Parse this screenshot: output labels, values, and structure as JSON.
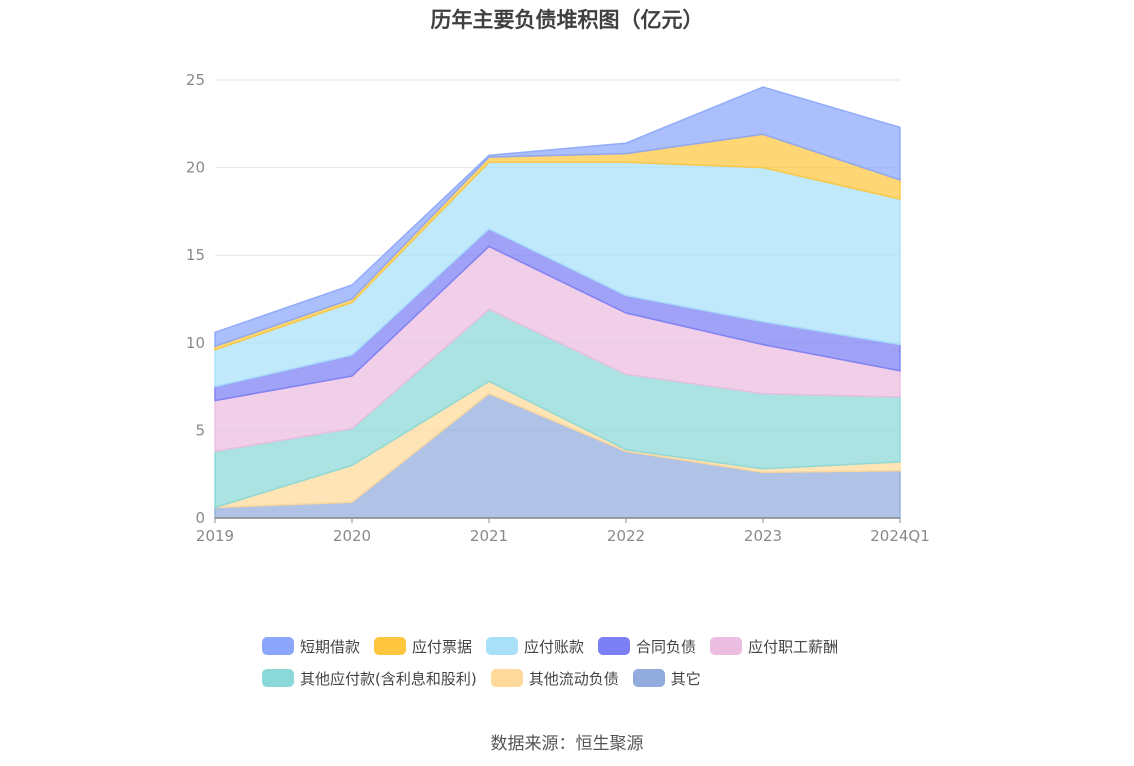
{
  "chart_data": {
    "type": "area",
    "stacked": true,
    "title": "历年主要负债堆积图（亿元）",
    "categories": [
      "2019",
      "2020",
      "2021",
      "2022",
      "2023",
      "2024Q1"
    ],
    "ylim": [
      0,
      25
    ],
    "yticks": [
      "0",
      "5",
      "10",
      "15",
      "20",
      "25"
    ],
    "grid": true,
    "legend_position": "bottom",
    "series": [
      {
        "name": "其它",
        "color": "#91acdc",
        "values": [
          0.6,
          0.9,
          7.1,
          3.8,
          2.6,
          2.7
        ]
      },
      {
        "name": "其他流动负债",
        "color": "#ffd99a",
        "values": [
          0.0,
          2.1,
          0.7,
          0.1,
          0.2,
          0.5
        ]
      },
      {
        "name": "其他应付款(含利息和股利)",
        "color": "#8ad8d8",
        "values": [
          3.2,
          2.1,
          4.1,
          4.3,
          4.3,
          3.7
        ]
      },
      {
        "name": "应付职工薪酬",
        "color": "#ebbde0",
        "values": [
          2.9,
          3.0,
          3.6,
          3.5,
          2.8,
          1.5
        ]
      },
      {
        "name": "合同负债",
        "color": "#7b7ef5",
        "values": [
          0.8,
          1.2,
          1.0,
          1.0,
          1.3,
          1.5
        ]
      },
      {
        "name": "应付账款",
        "color": "#a8e0fa",
        "values": [
          2.1,
          3.0,
          3.8,
          7.6,
          8.8,
          8.3
        ]
      },
      {
        "name": "应付票据",
        "color": "#fdc63e",
        "values": [
          0.2,
          0.2,
          0.3,
          0.5,
          1.9,
          1.1
        ]
      },
      {
        "name": "短期借款",
        "color": "#8ba6fb",
        "values": [
          0.8,
          0.8,
          0.1,
          0.6,
          2.7,
          3.0
        ]
      }
    ],
    "source": "数据来源：恒生聚源"
  },
  "legend": {
    "row1": [
      {
        "label": "短期借款",
        "color": "#8ba6fb"
      },
      {
        "label": "应付票据",
        "color": "#fdc63e"
      },
      {
        "label": "应付账款",
        "color": "#a8e0fa"
      },
      {
        "label": "合同负债",
        "color": "#7b7ef5"
      },
      {
        "label": "应付职工薪酬",
        "color": "#ebbde0"
      }
    ],
    "row2": [
      {
        "label": "其他应付款(含利息和股利)",
        "color": "#8ad8d8"
      },
      {
        "label": "其他流动负债",
        "color": "#ffd99a"
      },
      {
        "label": "其它",
        "color": "#91acdc"
      }
    ]
  }
}
